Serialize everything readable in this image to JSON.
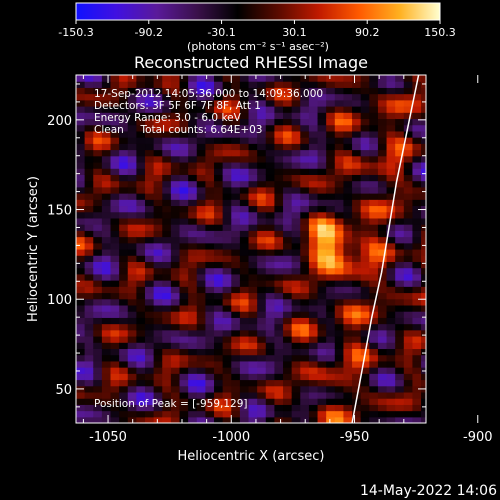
{
  "colorbar": {
    "tick_labels": [
      "-150.3",
      "-90.2",
      "-30.1",
      "30.1",
      "90.2",
      "150.3"
    ],
    "tick_values": [
      -150.3,
      -90.2,
      -30.1,
      30.1,
      90.2,
      150.3
    ],
    "range": [
      -150.3,
      150.3
    ],
    "unit_text": "(photons cm⁻² s⁻¹ asec⁻²)",
    "colors": [
      "#1010ff",
      "#4010e0",
      "#5a1a9a",
      "#3a104a",
      "#000000",
      "#5a0a00",
      "#c01a00",
      "#ff5a00",
      "#ffb020",
      "#ffffd0"
    ]
  },
  "chart_data": {
    "type": "heatmap",
    "title": "Reconstructed RHESSI Image",
    "xlabel": "Heliocentric X (arcsec)",
    "ylabel": "Heliocentric Y (arcsec)",
    "xlim": [
      -1063,
      -921
    ],
    "ylim": [
      31,
      225
    ],
    "x_ticks": [
      -1050,
      -1000,
      -950,
      -900
    ],
    "x_tick_labels": [
      "-1050",
      "-1000",
      "-950",
      "-900"
    ],
    "y_ticks": [
      50,
      100,
      150,
      200
    ],
    "y_tick_labels": [
      "50",
      "100",
      "150",
      "200"
    ],
    "peak": {
      "x": -959,
      "y": 129,
      "value": 150.3
    },
    "annotations": [
      "17-Sep-2012 14:05:36.000 to 14:09:36.000",
      "Detectors: 3F 5F 6F 7F 8F, Att 1",
      "Energy Range: 3.0 - 6.0 keV",
      "Clean     Total counts: 6.64E+03"
    ],
    "peak_label": "Position of Peak = [-959,129]",
    "limb_curve": {
      "x": [
        -951,
        -947,
        -943,
        -939,
        -936,
        -933,
        -930,
        -927,
        -924
      ],
      "y": [
        31,
        60,
        90,
        115,
        140,
        165,
        185,
        205,
        225
      ]
    }
  },
  "footer": {
    "timestamp": "14-May-2022 14:06"
  }
}
